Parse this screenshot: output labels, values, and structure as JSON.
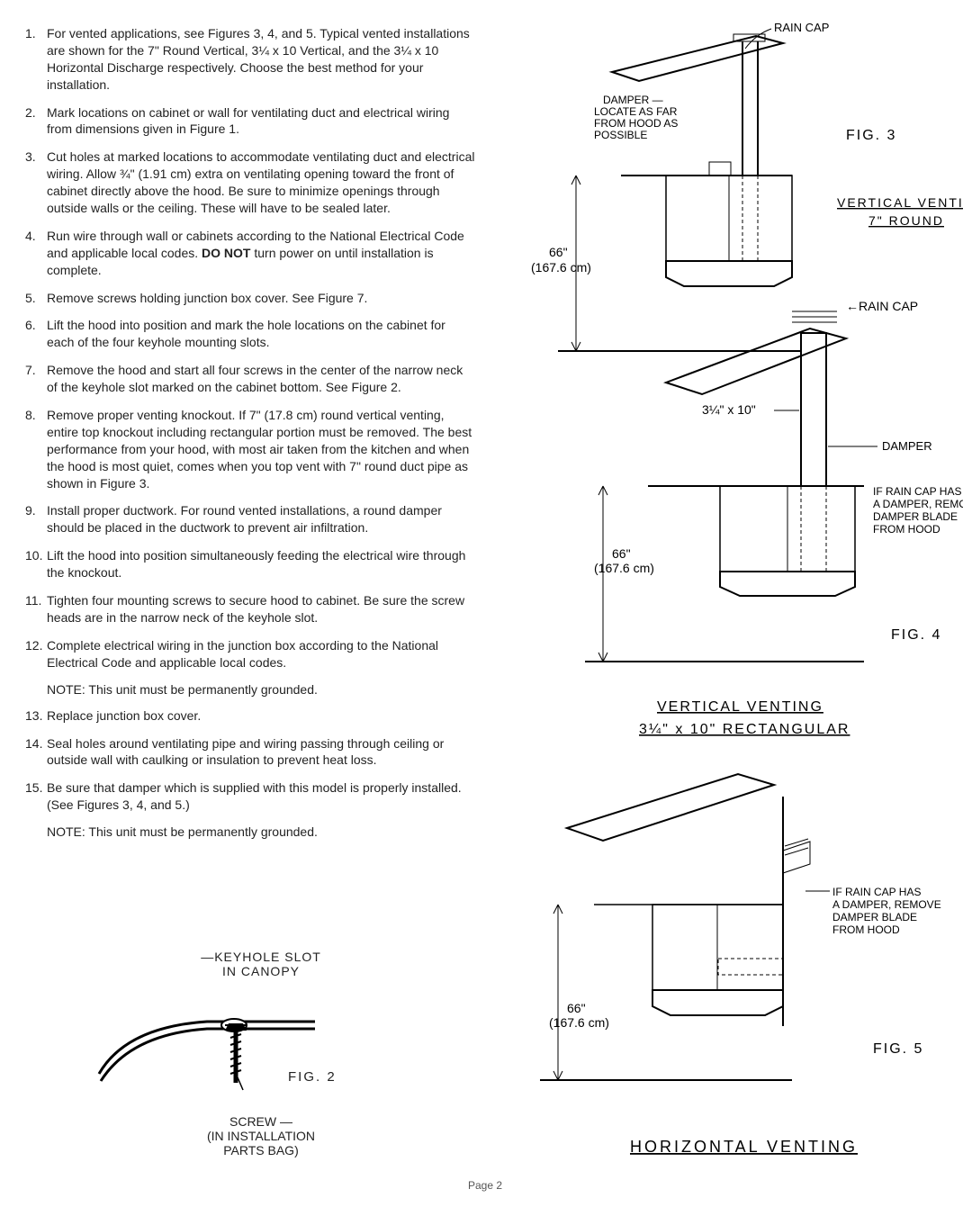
{
  "steps": [
    {
      "n": "1.",
      "t": "For vented applications, see Figures 3, 4, and 5. Typical vented installations are shown for the 7\" Round Vertical, 3¼ x 10 Vertical, and the 3¼ x 10 Horizontal Discharge respectively. Choose the best method for your installation."
    },
    {
      "n": "2.",
      "t": "Mark locations on cabinet or wall for ventilating duct and electrical wiring from dimensions given in Figure 1."
    },
    {
      "n": "3.",
      "t": "Cut holes at marked locations to accommodate ventilating duct and electrical wiring. Allow ¾\" (1.91 cm) extra on ventilating opening toward the front of cabinet directly above the hood. Be sure to minimize openings through outside walls or the ceiling. These will have to be sealed later."
    },
    {
      "n": "4.",
      "t": "Run wire through wall or cabinets according to the National Electrical Code and applicable local codes. DO NOT turn power on until installation is complete.",
      "boldTail": true
    },
    {
      "n": "5.",
      "t": "Remove screws holding junction box cover. See Figure 7."
    },
    {
      "n": "6.",
      "t": "Lift the hood into position and mark the hole locations on the cabinet for each of the four keyhole mounting slots."
    },
    {
      "n": "7.",
      "t": "Remove the hood and start all four screws in the center of the narrow neck of the keyhole slot marked on the cabinet bottom. See Figure 2."
    },
    {
      "n": "8.",
      "t": "Remove proper venting knockout. If 7\" (17.8 cm) round vertical venting, entire top knockout including rectangular portion must be removed. The best performance from your hood, with most air taken from the kitchen and when the hood is most quiet, comes when you top vent with 7\" round duct pipe as shown in Figure 3."
    },
    {
      "n": "9.",
      "t": "Install proper ductwork. For round vented installations, a round damper should be placed in the ductwork to prevent air infiltration."
    },
    {
      "n": "10.",
      "t": "Lift the hood into position simultaneously feeding the electrical wire through the knockout."
    },
    {
      "n": "11.",
      "t": "Tighten four mounting screws to secure hood to cabinet. Be sure the screw heads are in the narrow neck of the keyhole slot."
    },
    {
      "n": "12.",
      "t": "Complete electrical wiring in the junction box according to the National Electrical Code and applicable local codes."
    },
    {
      "n": "13.",
      "t": "Replace junction box cover."
    },
    {
      "n": "14.",
      "t": "Seal holes around ventilating pipe and wiring passing through ceiling or outside wall with caulking or insulation to prevent heat loss."
    },
    {
      "n": "15.",
      "t": "Be sure that damper which is supplied with this model is properly installed. (See Figures 3, 4, and 5.)"
    }
  ],
  "note": "NOTE: This unit must be permanently grounded.",
  "fig2": {
    "keyhole": "—KEYHOLE SLOT",
    "keyhole2": "IN  CANOPY",
    "screw": "SCREW —",
    "screw2": "(IN INSTALLATION",
    "screw3": "PARTS BAG)",
    "caption": "FIG. 2"
  },
  "dia": {
    "rainCap": "RAIN CAP",
    "damperLocate": "DAMPER —",
    "damperLocate2": "LOCATE AS FAR",
    "damperLocate3": "FROM HOOD AS",
    "damperLocate4": "POSSIBLE",
    "fig3": "FIG. 3",
    "vertVenting": "VERTICAL  VENTING",
    "sevenRound": "7\" ROUND",
    "sixtySix": "66\"",
    "sixtySixCm": "(167.6 cm)",
    "rainCapArrow": "←RAIN CAP",
    "damper": "DAMPER",
    "threeQuarter": "3¼\" x 10\"",
    "dmprNote": "IF RAIN CAP HAS",
    "dmprNote2": "A DAMPER, REMOVE",
    "dmprNote3": "DAMPER BLADE",
    "dmprNote4": "FROM HOOD",
    "fig4": "FIG. 4",
    "vertRect": "VERTICAL  VENTING",
    "vertRectSub": "3¼\" x 10\" RECTANGULAR",
    "fig5": "FIG. 5",
    "horiz": "HORIZONTAL  VENTING"
  },
  "pageNum": "Page 2",
  "colors": {
    "line": "#000000",
    "bg": "#ffffff"
  }
}
